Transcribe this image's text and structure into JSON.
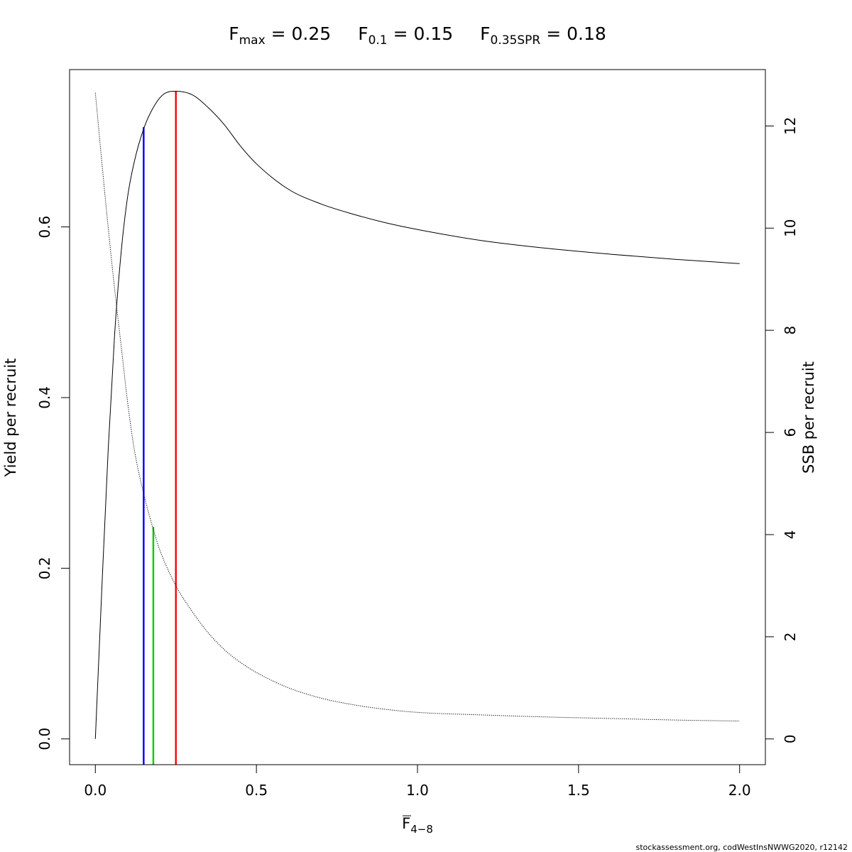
{
  "chart_data": {
    "type": "line",
    "title_parts": [
      {
        "main": "F",
        "sub": "max",
        "rest": " = 0.25"
      },
      {
        "main": "F",
        "sub": "0.1",
        "rest": " = 0.15"
      },
      {
        "main": "F",
        "sub": "0.35SPR",
        "rest": " = 0.18"
      }
    ],
    "xlabel": {
      "main": "F",
      "sub": "4−8",
      "overline": true
    },
    "ylabel": "Yield per recruit",
    "y2label": "SSB per recruit",
    "xlim": [
      -0.08,
      2.08
    ],
    "ylim": [
      -0.0302,
      0.7844
    ],
    "y2lim": [
      -0.504,
      13.104
    ],
    "x_ticks": [
      "0.0",
      "0.5",
      "1.0",
      "1.5",
      "2.0"
    ],
    "y_ticks": [
      "0.0",
      "0.2",
      "0.4",
      "0.6"
    ],
    "y2_ticks": [
      "0",
      "2",
      "4",
      "6",
      "8",
      "10",
      "12"
    ],
    "series": [
      {
        "name": "Yield per recruit",
        "axis": "left",
        "style": "solid",
        "color": "#000000",
        "x": [
          0.0,
          0.02,
          0.04,
          0.06,
          0.08,
          0.1,
          0.12,
          0.15,
          0.18,
          0.21,
          0.25,
          0.3,
          0.35,
          0.4,
          0.45,
          0.5,
          0.6,
          0.7,
          0.8,
          0.9,
          1.0,
          1.2,
          1.4,
          1.6,
          1.8,
          2.0
        ],
        "y": [
          0.0,
          0.175,
          0.34,
          0.475,
          0.57,
          0.635,
          0.675,
          0.715,
          0.74,
          0.755,
          0.759,
          0.755,
          0.74,
          0.72,
          0.695,
          0.674,
          0.644,
          0.627,
          0.615,
          0.605,
          0.597,
          0.584,
          0.575,
          0.568,
          0.562,
          0.557
        ]
      },
      {
        "name": "SSB per recruit",
        "axis": "right",
        "style": "dotted",
        "color": "#000000",
        "x": [
          0.0,
          0.02,
          0.04,
          0.06,
          0.08,
          0.1,
          0.12,
          0.15,
          0.18,
          0.2,
          0.25,
          0.3,
          0.35,
          0.4,
          0.45,
          0.5,
          0.6,
          0.7,
          0.8,
          0.9,
          1.0,
          1.2,
          1.4,
          1.6,
          1.8,
          2.0
        ],
        "y": [
          12.65,
          11.3,
          10.0,
          8.8,
          7.7,
          6.6,
          5.7,
          4.8,
          4.1,
          3.7,
          3.0,
          2.5,
          2.08,
          1.75,
          1.5,
          1.3,
          1.0,
          0.8,
          0.67,
          0.58,
          0.52,
          0.47,
          0.43,
          0.4,
          0.37,
          0.35
        ]
      }
    ],
    "reference_lines": [
      {
        "name": "F0.1",
        "x": 0.15,
        "axis": "left",
        "y_top": 0.717,
        "color": "#0000ff"
      },
      {
        "name": "F0.35SPR",
        "x": 0.18,
        "axis": "right",
        "y_top": 4.15,
        "color": "#00cd00"
      },
      {
        "name": "Fmax",
        "x": 0.25,
        "axis": "left",
        "y_top": 0.759,
        "color": "#ff0000"
      }
    ],
    "grid": false,
    "legend": "none"
  },
  "caption": "stockassessment.org, codWestInsNWWG2020, r12142"
}
